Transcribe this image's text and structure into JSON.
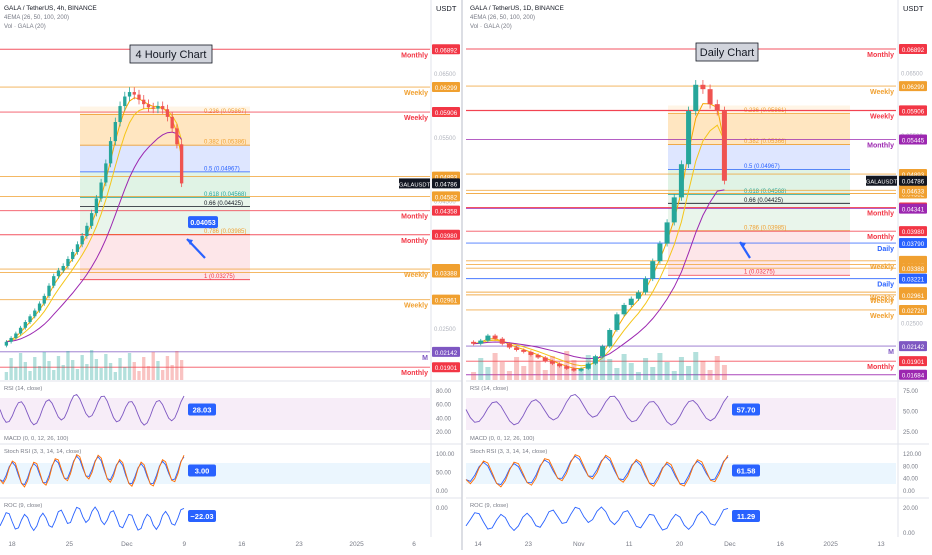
{
  "colors": {
    "up": "#26a69a",
    "down": "#ef5350",
    "axis_text": "#787b86",
    "monthly": "#f23645",
    "weekly": "#f0a030",
    "daily": "#2962ff",
    "fib": "#2962ff",
    "ema_orange": "#f7a600",
    "ema_yellow": "#f5c518",
    "ema_purple": "#9c27b0",
    "price_tag": "#131722",
    "callout": "#2962ff",
    "m_tag": "#7e57c2",
    "purple_level": "#9c27b0"
  },
  "left_panel": {
    "header": {
      "symbol_line": "GALA / TetherUS, 4h, BINANCE",
      "ema_line": "4EMA (26, 50, 100, 200)",
      "vol_line": "Vol · GALA (20)"
    },
    "currency": "USDT",
    "chart_title": "4 Hourly Chart",
    "x_ticks": [
      "18",
      "25",
      "Dec",
      "9",
      "16",
      "23",
      "2025",
      "6"
    ],
    "price_tag": {
      "label": "GALAUSDT",
      "value": "0.04786"
    },
    "callout": "0.04053",
    "levels": [
      {
        "price": "0.06892",
        "label": "Monthly",
        "kind": "monthly"
      },
      {
        "price": "0.06299",
        "label": "Weekly",
        "kind": "weekly"
      },
      {
        "price": "0.05906",
        "label": "Weekly",
        "kind": "monthly"
      },
      {
        "price": "0.04893",
        "label": "",
        "kind": "weekly"
      },
      {
        "price": "0.04582",
        "label": "",
        "kind": "weekly"
      },
      {
        "price": "0.04358",
        "label": "Monthly",
        "kind": "monthly"
      },
      {
        "price": "0.03980",
        "label": "Monthly",
        "kind": "monthly"
      },
      {
        "price": "0.03442",
        "label": "Weekly",
        "kind": "weekly"
      },
      {
        "price": "0.03388",
        "label": "",
        "kind": "weekly"
      },
      {
        "price": "0.02961",
        "label": "Weekly",
        "kind": "weekly"
      },
      {
        "price": "0.02142",
        "label": "M",
        "kind": "m"
      },
      {
        "price": "0.01901",
        "label": "Monthly",
        "kind": "monthly"
      }
    ],
    "grid_prices": [
      "0.06500",
      "0.05500",
      "0.04500",
      "0.02500"
    ],
    "fib": [
      {
        "text": "0.236 (0.05867)",
        "color": "#f0a030"
      },
      {
        "text": "0.382 (0.05386)",
        "color": "#f0a030"
      },
      {
        "text": "0.5 (0.04967)",
        "color": "#2962ff"
      },
      {
        "text": "0.618 (0.04568)",
        "color": "#26a69a"
      },
      {
        "text": "0.66 (0.04425)",
        "color": "#131722"
      },
      {
        "text": "0.786 (0.03985)",
        "color": "#f0a030"
      },
      {
        "text": "1 (0.03275)",
        "color": "#f23645"
      }
    ],
    "rsi": {
      "label": "RSI (14, close)",
      "value": "28.03",
      "ticks": [
        "80.00",
        "60.00",
        "40.00",
        "20.00"
      ]
    },
    "stoch": {
      "label": "Stoch RSI (3, 3, 14, 14, close)",
      "macd_label": "MACD (0, 0, 12, 26, 100)",
      "value": "3.00",
      "ticks": [
        "100.00",
        "50.00",
        "0.00"
      ]
    },
    "roc": {
      "label": "ROC (9, close)",
      "value": "−22.03",
      "ticks": [
        "0.00"
      ]
    }
  },
  "right_panel": {
    "header": {
      "symbol_line": "GALA / TetherUS, 1D, BINANCE",
      "ema_line": "4EMA (26, 50, 100, 200)",
      "vol_line": "Vol · GALA (20)"
    },
    "currency": "USDT",
    "chart_title": "Daily Chart",
    "x_ticks": [
      "14",
      "23",
      "Nov",
      "11",
      "20",
      "Dec",
      "16",
      "2025",
      "13"
    ],
    "price_tag": {
      "label": "GALAUSDT",
      "value": "0.04786"
    },
    "levels": [
      {
        "price": "0.06892",
        "label": "Monthly",
        "kind": "monthly"
      },
      {
        "price": "0.06299",
        "label": "Weekly",
        "kind": "weekly"
      },
      {
        "price": "0.05911",
        "label": "",
        "kind": "monthly"
      },
      {
        "price": "0.05906",
        "label": "Weekly",
        "kind": "monthly"
      },
      {
        "price": "0.05445",
        "label": "Monthly",
        "kind": "purple"
      },
      {
        "price": "0.04893",
        "label": "",
        "kind": "weekly"
      },
      {
        "price": "0.04582",
        "label": "",
        "kind": "weekly"
      },
      {
        "price": "0.04633",
        "label": "",
        "kind": "weekly"
      },
      {
        "price": "0.04358",
        "label": "Monthly",
        "kind": "monthly"
      },
      {
        "price": "0.04341",
        "label": "",
        "kind": "purple"
      },
      {
        "price": "0.03980",
        "label": "Monthly",
        "kind": "monthly"
      },
      {
        "price": "0.03790",
        "label": "Daily",
        "kind": "daily"
      },
      {
        "price": "0.03505",
        "label": "Weekly",
        "kind": "weekly"
      },
      {
        "price": "0.03447",
        "label": "",
        "kind": "weekly"
      },
      {
        "price": "0.03388",
        "label": "",
        "kind": "weekly"
      },
      {
        "price": "0.03221",
        "label": "Daily",
        "kind": "daily"
      },
      {
        "price": "0.03005",
        "label": "Weekly",
        "kind": "weekly"
      },
      {
        "price": "0.02961",
        "label": "Weekly",
        "kind": "weekly"
      },
      {
        "price": "0.02720",
        "label": "Weekly",
        "kind": "weekly"
      },
      {
        "price": "0.02142",
        "label": "M",
        "kind": "m"
      },
      {
        "price": "0.01901",
        "label": "Monthly",
        "kind": "monthly"
      },
      {
        "price": "0.01684",
        "label": "",
        "kind": "purple"
      }
    ],
    "grid_prices": [
      "0.06500",
      "0.05500",
      "0.02500"
    ],
    "fib": [
      {
        "text": "0.236 (0.05861)",
        "color": "#f0a030"
      },
      {
        "text": "0.382 (0.05366)",
        "color": "#f0a030"
      },
      {
        "text": "0.5 (0.04967)",
        "color": "#2962ff"
      },
      {
        "text": "0.618 (0.04568)",
        "color": "#26a69a"
      },
      {
        "text": "0.66 (0.04425)",
        "color": "#131722"
      },
      {
        "text": "0.786 (0.03985)",
        "color": "#f0a030"
      },
      {
        "text": "1 (0.03275)",
        "color": "#f23645"
      }
    ],
    "rsi": {
      "label": "RSI (14, close)",
      "value": "57.70",
      "ticks": [
        "75.00",
        "50.00",
        "25.00"
      ]
    },
    "stoch": {
      "label": "Stoch RSI (3, 3, 14, 14, close)",
      "macd_label": "MACD (0, 0, 12, 26, 100)",
      "value": "61.58",
      "ticks": [
        "120.00",
        "80.00",
        "40.00",
        "0.00"
      ]
    },
    "roc": {
      "label": "ROC (9, close)",
      "value": "11.29",
      "ticks": [
        "20.00",
        "0.00"
      ]
    }
  },
  "chart_data": [
    {
      "type": "candlestick",
      "title": "4 Hourly Chart",
      "x_ticks": [
        "18",
        "25",
        "Dec",
        "9",
        "16",
        "23",
        "2025",
        "6"
      ],
      "ylim": [
        0.017,
        0.071
      ],
      "series": [
        {
          "name": "GALAUSDT",
          "close_last": 0.04786,
          "open": [
            0.0224,
            0.023,
            0.0236,
            0.0243,
            0.0252,
            0.0261,
            0.027,
            0.0279,
            0.029,
            0.0302,
            0.0318,
            0.0333,
            0.0342,
            0.0349,
            0.036,
            0.0371,
            0.0383,
            0.0396,
            0.0412,
            0.0432,
            0.0455,
            0.048,
            0.051,
            0.0545,
            0.0575,
            0.06,
            0.0615,
            0.0622,
            0.0618,
            0.061,
            0.0603,
            0.0598,
            0.0596,
            0.06,
            0.0595,
            0.0583,
            0.0565,
            0.054
          ],
          "close": [
            0.023,
            0.0236,
            0.0243,
            0.0252,
            0.0261,
            0.027,
            0.0279,
            0.029,
            0.0302,
            0.0318,
            0.0333,
            0.0342,
            0.0349,
            0.036,
            0.0371,
            0.0383,
            0.0396,
            0.0412,
            0.0432,
            0.0455,
            0.048,
            0.051,
            0.0545,
            0.0575,
            0.06,
            0.0615,
            0.0622,
            0.0618,
            0.061,
            0.0603,
            0.0598,
            0.0596,
            0.06,
            0.0595,
            0.0583,
            0.0565,
            0.054,
            0.04786
          ]
        }
      ],
      "fib_levels": [
        0.05867,
        0.05386,
        0.04967,
        0.04568,
        0.04425,
        0.03985,
        0.03275
      ]
    },
    {
      "type": "candlestick",
      "title": "Daily Chart",
      "x_ticks": [
        "14",
        "23",
        "Nov",
        "11",
        "20",
        "Dec",
        "16",
        "2025",
        "13"
      ],
      "ylim": [
        0.016,
        0.071
      ],
      "series": [
        {
          "name": "GALAUSDT",
          "close_last": 0.04786,
          "open": [
            0.0221,
            0.0218,
            0.0223,
            0.0231,
            0.0226,
            0.0218,
            0.0212,
            0.0208,
            0.0205,
            0.02,
            0.0196,
            0.019,
            0.0186,
            0.0182,
            0.0178,
            0.0175,
            0.0178,
            0.0186,
            0.0198,
            0.0214,
            0.024,
            0.0265,
            0.028,
            0.029,
            0.03,
            0.0322,
            0.035,
            0.0378,
            0.0412,
            0.0452,
            0.0505,
            0.059,
            0.0632,
            0.0625,
            0.0601,
            0.059
          ],
          "close": [
            0.0218,
            0.0223,
            0.0231,
            0.0226,
            0.0218,
            0.0212,
            0.0208,
            0.0205,
            0.02,
            0.0196,
            0.019,
            0.0186,
            0.0182,
            0.0178,
            0.0175,
            0.0178,
            0.0186,
            0.0198,
            0.0214,
            0.024,
            0.0265,
            0.028,
            0.029,
            0.03,
            0.0322,
            0.035,
            0.0378,
            0.0412,
            0.0452,
            0.0505,
            0.059,
            0.0632,
            0.0625,
            0.0601,
            0.059,
            0.04786
          ]
        }
      ],
      "fib_levels": [
        0.05861,
        0.05366,
        0.04967,
        0.04568,
        0.04425,
        0.03985,
        0.03275
      ]
    }
  ]
}
